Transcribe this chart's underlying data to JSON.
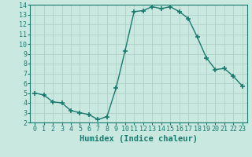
{
  "x": [
    0,
    1,
    2,
    3,
    4,
    5,
    6,
    7,
    8,
    9,
    10,
    11,
    12,
    13,
    14,
    15,
    16,
    17,
    18,
    19,
    20,
    21,
    22,
    23
  ],
  "y": [
    5.0,
    4.8,
    4.1,
    4.0,
    3.2,
    3.0,
    2.8,
    2.3,
    2.6,
    5.5,
    9.3,
    13.3,
    13.4,
    13.8,
    13.6,
    13.8,
    13.3,
    12.6,
    10.7,
    8.6,
    7.4,
    7.5,
    6.7,
    5.7
  ],
  "line_color": "#1a7a6e",
  "marker": "+",
  "marker_size": 4,
  "marker_lw": 1.2,
  "bg_color": "#c8e8e0",
  "grid_color": "#b0d0c8",
  "xlabel": "Humidex (Indice chaleur)",
  "xlim": [
    -0.5,
    23.5
  ],
  "ylim": [
    2,
    14
  ],
  "yticks": [
    2,
    3,
    4,
    5,
    6,
    7,
    8,
    9,
    10,
    11,
    12,
    13,
    14
  ],
  "xticks": [
    0,
    1,
    2,
    3,
    4,
    5,
    6,
    7,
    8,
    9,
    10,
    11,
    12,
    13,
    14,
    15,
    16,
    17,
    18,
    19,
    20,
    21,
    22,
    23
  ],
  "tick_fontsize": 6,
  "xlabel_fontsize": 7.5
}
